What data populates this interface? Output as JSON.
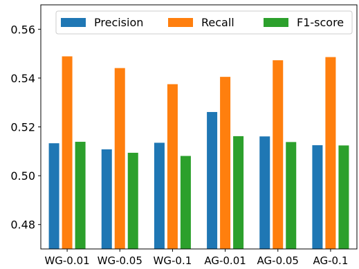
{
  "chart_data": {
    "type": "bar",
    "title": "",
    "xlabel": "",
    "ylabel": "",
    "categories": [
      "WG-0.01",
      "WG-0.05",
      "WG-0.1",
      "AG-0.01",
      "AG-0.05",
      "AG-0.1"
    ],
    "series": [
      {
        "name": "Precision",
        "color": "#1f77b4",
        "values": [
          0.5133,
          0.5108,
          0.5135,
          0.5261,
          0.5161,
          0.5125
        ]
      },
      {
        "name": "Recall",
        "color": "#ff7f0e",
        "values": [
          0.5489,
          0.5441,
          0.5375,
          0.5405,
          0.5473,
          0.5486
        ]
      },
      {
        "name": "F1-score",
        "color": "#2ca02c",
        "values": [
          0.5139,
          0.5094,
          0.5081,
          0.5162,
          0.5138,
          0.5124
        ]
      }
    ],
    "ylim": [
      0.47,
      0.57
    ],
    "yticks": [
      0.48,
      0.5,
      0.52,
      0.54,
      0.56
    ],
    "ytick_labels": [
      "0.48",
      "0.50",
      "0.52",
      "0.54",
      "0.56"
    ],
    "legend_position": "top",
    "grid": false
  }
}
